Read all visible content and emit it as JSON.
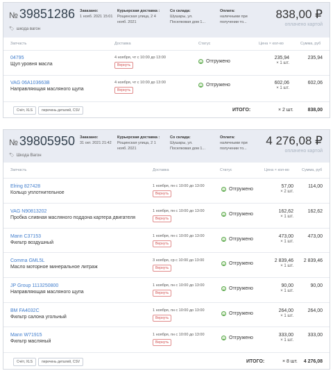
{
  "orders": [
    {
      "number_sign": "№",
      "number": "39851286",
      "tag": "шкода вагон",
      "ordered_label": "Заказано:",
      "ordered_value": "1 нояб. 2021 15:01",
      "delivery_label": "Курьерская доставка :",
      "delivery_value": "Рощинская улица, 2 4 нояб. 2021",
      "warehouse_label": "Со склада:",
      "warehouse_value": "Шушары, ул. Поселковая дом 1...",
      "payment_label": "Оплата:",
      "payment_value": "наличными при получении то...",
      "total": "838,00 ₽",
      "paid": "оплачено картой",
      "columns": {
        "part": "Запчасть",
        "delivery": "Доставка",
        "status": "Статус",
        "price": "Цена × кол-во",
        "sum": "Сумма, руб"
      },
      "items": [
        {
          "article": "04795",
          "name": "Щуп уровня масла",
          "delivery": "4 ноября, чт с 10:00 до 13:00",
          "return": "Вернуть",
          "status": "Отгружено",
          "price": "235,94",
          "qty": "× 1 шт.",
          "sum": "235,94"
        },
        {
          "article": "VAG 06A103663B",
          "name": "Направляющая масляного щупа",
          "delivery": "4 ноября, чт с 10:00 до 13:00",
          "return": "Вернуть",
          "status": "Отгружено",
          "price": "602,06",
          "qty": "× 1 шт.",
          "sum": "602,06"
        }
      ],
      "buttons": {
        "xls": "Счёт, XLS",
        "csv": "перечень деталей, CSV"
      },
      "itogo_label": "ИТОГО:",
      "itogo_qty": "× 2 шт.",
      "itogo_sum": "838,00"
    },
    {
      "number_sign": "№",
      "number": "39805950",
      "tag": "Шкода Вагон",
      "ordered_label": "Заказано:",
      "ordered_value": "31 окт. 2021 21:42",
      "delivery_label": "Курьерская доставка :",
      "delivery_value": "Рощинская улица, 2 1 нояб. 2021",
      "warehouse_label": "Со склада:",
      "warehouse_value": "Шушары, ул. Поселковая дом 1...",
      "payment_label": "Оплата:",
      "payment_value": "наличными при получении то...",
      "total": "4 276,08 ₽",
      "paid": "оплачено картой",
      "columns": {
        "part": "Запчасть",
        "delivery": "Доставка",
        "status": "Статус",
        "price": "Цена × кол-во",
        "sum": "Сумма, руб"
      },
      "items": [
        {
          "article": "Elring 827428",
          "name": "Кольцо уплотнительное",
          "delivery": "1 ноября, пн с 10:00 до 13:00",
          "return": "Вернуть",
          "status": "Отгружено",
          "price": "57,00",
          "qty": "× 2 шт.",
          "sum": "114,00"
        },
        {
          "article": "VAG N90813202",
          "name": "Пробка сливная масляного поддона картера двигателя",
          "delivery": "1 ноября, пн с 10:00 до 13:00",
          "return": "Вернуть",
          "status": "Отгружено",
          "price": "162,62",
          "qty": "× 1 шт.",
          "sum": "162,62"
        },
        {
          "article": "Mann C37153",
          "name": "Фильтр воздушный",
          "delivery": "1 ноября, пн с 10:00 до 13:00",
          "return": "Вернуть",
          "status": "Отгружено",
          "price": "473,00",
          "qty": "× 1 шт.",
          "sum": "473,00"
        },
        {
          "article": "Comma GML5L",
          "name": "Масло моторное минеральное литраж",
          "delivery": "3 ноября, ср с 10:00 до 13:00",
          "return": "Вернуть",
          "status": "Отгружено",
          "price": "2 839,46",
          "qty": "× 1 шт.",
          "sum": "2 839,46"
        },
        {
          "article": "JP Group 1113250800",
          "name": "Направляющая масляного щупа",
          "delivery": "1 ноября, пн с 10:00 до 13:00",
          "return": "Вернуть",
          "status": "Отгружено",
          "price": "90,00",
          "qty": "× 1 шт.",
          "sum": "90,00"
        },
        {
          "article": "BM FA4032C",
          "name": "Фильтр салона угольный",
          "delivery": "1 ноября, пн с 10:00 до 13:00",
          "return": "Вернуть",
          "status": "Отгружено",
          "price": "264,00",
          "qty": "× 1 шт.",
          "sum": "264,00"
        },
        {
          "article": "Mann W71915",
          "name": "Фильтр масляный",
          "delivery": "1 ноября, пн с 10:00 до 13:00",
          "return": "Вернуть",
          "status": "Отгружено",
          "price": "333,00",
          "qty": "× 1 шт.",
          "sum": "333,00"
        }
      ],
      "buttons": {
        "xls": "Счёт, XLS",
        "csv": "перечень деталей, CSV"
      },
      "itogo_label": "ИТОГО:",
      "itogo_qty": "× 8 шт.",
      "itogo_sum": "4 276,08"
    }
  ]
}
